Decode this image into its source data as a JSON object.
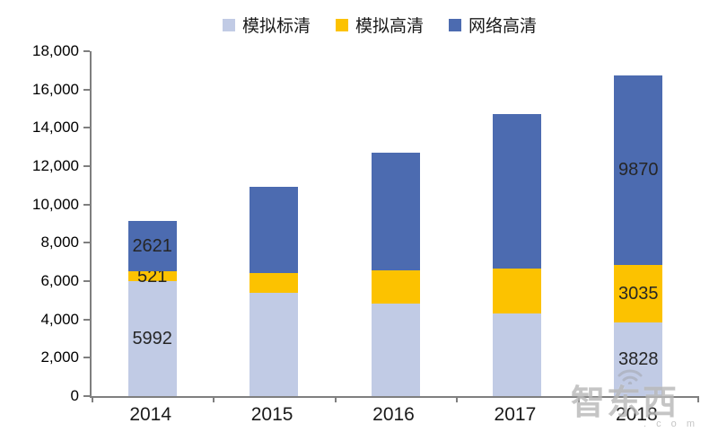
{
  "chart_data": {
    "type": "bar",
    "stacked": true,
    "categories": [
      "2014",
      "2015",
      "2016",
      "2017",
      "2018"
    ],
    "series": [
      {
        "name": "模拟标清",
        "color": "#C1CBE5",
        "values": [
          5992,
          5400,
          4850,
          4300,
          3828
        ]
      },
      {
        "name": "模拟高清",
        "color": "#FCC200",
        "values": [
          521,
          1000,
          1700,
          2350,
          3035
        ]
      },
      {
        "name": "网络高清",
        "color": "#4C6BB0",
        "values": [
          2621,
          4500,
          6150,
          8050,
          9870
        ]
      }
    ],
    "bar_value_labels": {
      "0": [
        "5992",
        "521",
        "2621"
      ],
      "4": [
        "3828",
        "3035",
        "9870"
      ]
    },
    "ylim": [
      0,
      18000
    ],
    "ytick_step": 2000,
    "ytick_labels": [
      "0",
      "2,000",
      "4,000",
      "6,000",
      "8,000",
      "10,000",
      "12,000",
      "14,000",
      "16,000",
      "18,000"
    ],
    "legend_position": "top",
    "grid": false
  },
  "watermark": {
    "text": "智东西",
    "suffix": ". c o m",
    "icon": "wifi-icon"
  }
}
